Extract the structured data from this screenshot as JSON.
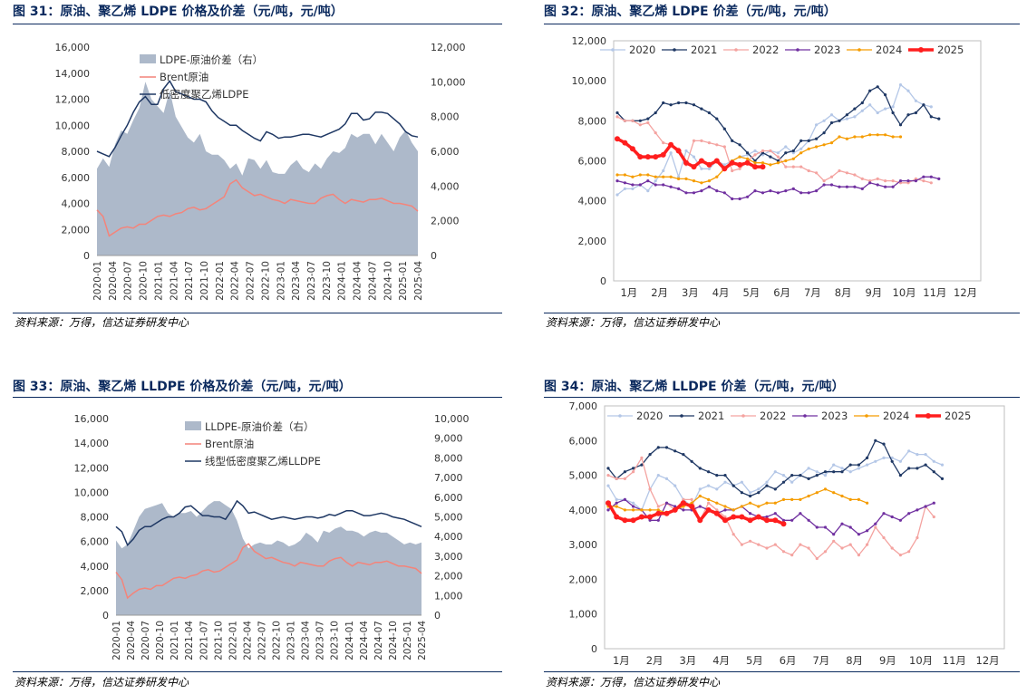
{
  "panels": [
    {
      "title": "图 31：原油、聚乙烯 LDPE 价格及价差（元/吨，元/吨）",
      "source": "资料来源：万得，信达证券研发中心"
    },
    {
      "title": "图 32：原油、聚乙烯 LDPE 价差（元/吨，元/吨）",
      "source": "资料来源：万得，信达证券研发中心"
    },
    {
      "title": "图 33：原油、聚乙烯 LLDPE 价格及价差（元/吨，元/吨）",
      "source": "资料来源：万得，信达证券研发中心"
    },
    {
      "title": "图 34：原油、聚乙烯 LLDPE 价差（元/吨，元/吨）",
      "source": "资料来源：万得，信达证券研发中心"
    }
  ],
  "colors": {
    "spread_area": "#adb9ca",
    "brent": "#f4847a",
    "pe_line": "#1f3864",
    "y2020": "#b4c7e7",
    "y2021": "#1f3864",
    "y2022": "#f4a3a0",
    "y2023": "#7030a0",
    "y2024": "#f59c00",
    "y2025": "#ff1e1e"
  },
  "chart_data": [
    {
      "id": "fig31",
      "type": "line",
      "xlabels": [
        "2020-01",
        "2020-04",
        "2020-07",
        "2020-10",
        "2021-01",
        "2021-04",
        "2021-07",
        "2021-10",
        "2022-01",
        "2022-04",
        "2022-07",
        "2022-10",
        "2023-01",
        "2023-04",
        "2023-07",
        "2023-10",
        "2024-01",
        "2024-04",
        "2024-07",
        "2024-10",
        "2025-01",
        "2025-04"
      ],
      "ylim_left": [
        0,
        16000
      ],
      "yticks_left": [
        "0",
        "2,000",
        "4,000",
        "6,000",
        "8,000",
        "10,000",
        "12,000",
        "14,000",
        "16,000"
      ],
      "ylim_right": [
        0,
        12000
      ],
      "yticks_right": [
        "0",
        "2,000",
        "4,000",
        "6,000",
        "8,000",
        "10,000",
        "12,000"
      ],
      "series": [
        {
          "name": "LDPE-原油价差（右）",
          "axis": "right",
          "kind": "area",
          "color_key": "spread_area",
          "values": [
            5000,
            5600,
            5100,
            6400,
            7200,
            7000,
            7800,
            8500,
            10000,
            9000,
            8600,
            8200,
            9500,
            8000,
            7400,
            6800,
            6500,
            7000,
            6000,
            5800,
            5800,
            5500,
            5000,
            5300,
            4600,
            5600,
            5500,
            5000,
            5500,
            4800,
            4700,
            4700,
            5200,
            5500,
            5000,
            4800,
            5300,
            5000,
            5600,
            6000,
            5900,
            6200,
            7000,
            6800,
            7000,
            7000,
            6400,
            7000,
            6500,
            6000,
            6800,
            7200,
            6500,
            6000
          ]
        },
        {
          "name": "Brent原油",
          "axis": "left",
          "kind": "line",
          "color_key": "brent",
          "values": [
            3500,
            3000,
            1500,
            1800,
            2100,
            2200,
            2100,
            2400,
            2400,
            2700,
            3000,
            3100,
            3000,
            3200,
            3300,
            3600,
            3700,
            3500,
            3600,
            3900,
            4200,
            4500,
            5500,
            5800,
            5200,
            4900,
            4600,
            4700,
            4500,
            4300,
            4200,
            4000,
            4300,
            4200,
            4100,
            4000,
            4000,
            4400,
            4600,
            4700,
            4300,
            4000,
            4300,
            4200,
            4100,
            4300,
            4300,
            4400,
            4200,
            4000,
            4000,
            3900,
            3800,
            3400
          ]
        },
        {
          "name": "低密度聚乙烯LDPE",
          "axis": "left",
          "kind": "line",
          "color_key": "pe_line",
          "values": [
            8000,
            7800,
            7600,
            8300,
            9200,
            10000,
            11000,
            11800,
            12200,
            11600,
            11600,
            12800,
            13400,
            12600,
            12400,
            12200,
            12000,
            12000,
            11800,
            11100,
            10600,
            10300,
            10000,
            10000,
            9600,
            9300,
            9000,
            8800,
            9500,
            9300,
            9000,
            9100,
            9100,
            9200,
            9300,
            9300,
            9200,
            9100,
            9300,
            9500,
            9700,
            10100,
            10900,
            10900,
            10400,
            10500,
            11000,
            11000,
            10900,
            10500,
            10100,
            9500,
            9200,
            9100
          ]
        }
      ]
    },
    {
      "id": "fig32",
      "type": "line",
      "xlabels": [
        "1月",
        "2月",
        "3月",
        "4月",
        "5月",
        "6月",
        "7月",
        "8月",
        "9月",
        "10月",
        "11月",
        "12月"
      ],
      "ylim": [
        0,
        12000
      ],
      "yticks": [
        "0",
        "2,000",
        "4,000",
        "6,000",
        "8,000",
        "10,000",
        "12,000"
      ],
      "series": [
        {
          "name": "2020",
          "color_key": "y2020",
          "values": [
            4300,
            4600,
            4600,
            4800,
            4500,
            5000,
            5500,
            6400,
            5200,
            6500,
            6200,
            5600,
            5600,
            6000,
            5800,
            6000,
            6200,
            6300,
            6500,
            6300,
            6500,
            6400,
            6700,
            6400,
            6600,
            7000,
            7800,
            8000,
            8300,
            8000,
            8100,
            8200,
            8500,
            8800,
            8400,
            8600,
            8700,
            9800,
            9500,
            9000,
            8800,
            8700
          ]
        },
        {
          "name": "2021",
          "color_key": "y2021",
          "values": [
            8400,
            8000,
            8000,
            8000,
            8100,
            8400,
            8900,
            8800,
            8900,
            8900,
            8800,
            8600,
            8400,
            8100,
            7600,
            7000,
            6800,
            6400,
            6000,
            6400,
            6200,
            6000,
            6400,
            6500,
            7000,
            7000,
            7100,
            7400,
            7900,
            8000,
            8300,
            8600,
            8900,
            9500,
            9700,
            9300,
            8400,
            7800,
            8300,
            8400,
            8800,
            8200,
            8100
          ]
        },
        {
          "name": "2022",
          "color_key": "y2022",
          "values": [
            8200,
            8000,
            8000,
            7800,
            7900,
            7400,
            6900,
            6800,
            6600,
            5800,
            7000,
            7000,
            6900,
            6800,
            6700,
            5500,
            5600,
            6000,
            6300,
            6500,
            6500,
            6200,
            5700,
            5700,
            5700,
            5500,
            5400,
            5000,
            5200,
            5500,
            5400,
            5300,
            5100,
            5000,
            5100,
            5000,
            5000,
            4900,
            4900,
            5100,
            5000,
            4900
          ]
        },
        {
          "name": "2023",
          "color_key": "y2023",
          "values": [
            5000,
            4900,
            4800,
            4800,
            5000,
            4800,
            4800,
            4700,
            4600,
            4400,
            4400,
            4500,
            4700,
            4500,
            4400,
            4100,
            4100,
            4200,
            4500,
            4400,
            4500,
            4400,
            4500,
            4600,
            4400,
            4400,
            4500,
            4800,
            4800,
            4700,
            4700,
            4700,
            4600,
            4900,
            4800,
            4700,
            4700,
            5000,
            5000,
            5000,
            5200,
            5200,
            5100
          ]
        },
        {
          "name": "2024",
          "color_key": "y2024",
          "values": [
            5300,
            5300,
            5200,
            5300,
            5300,
            5200,
            5200,
            5200,
            5100,
            5100,
            5000,
            4900,
            5000,
            5200,
            5600,
            6000,
            6200,
            6100,
            5900,
            5900,
            5800,
            5900,
            6000,
            6100,
            6400,
            6600,
            6700,
            6800,
            6900,
            7200,
            7100,
            7200,
            7200,
            7300,
            7300,
            7300,
            7200,
            7200
          ]
        },
        {
          "name": "2025",
          "color_key": "y2025",
          "values": [
            7100,
            6900,
            6600,
            6200,
            6200,
            6200,
            6300,
            6800,
            6500,
            5900,
            5700,
            6000,
            5800,
            6000,
            5600,
            5900,
            5800,
            5900,
            5700,
            5700
          ]
        }
      ]
    },
    {
      "id": "fig33",
      "type": "line",
      "xlabels": [
        "2020-01",
        "2020-04",
        "2020-07",
        "2020-10",
        "2021-01",
        "2021-04",
        "2021-07",
        "2021-10",
        "2022-01",
        "2022-04",
        "2022-07",
        "2022-10",
        "2023-01",
        "2023-04",
        "2023-07",
        "2023-10",
        "2024-01",
        "2024-04",
        "2024-07",
        "2024-10",
        "2025-01",
        "2025-04"
      ],
      "ylim_left": [
        0,
        16000
      ],
      "yticks_left": [
        "0",
        "2,000",
        "4,000",
        "6,000",
        "8,000",
        "10,000",
        "12,000",
        "14,000",
        "16,000"
      ],
      "ylim_right": [
        0,
        10000
      ],
      "yticks_right": [
        "0",
        "1,000",
        "2,000",
        "3,000",
        "4,000",
        "5,000",
        "6,000",
        "7,000",
        "8,000",
        "9,000",
        "10,000"
      ],
      "series": [
        {
          "name": "LLDPE-原油价差（右）",
          "axis": "right",
          "kind": "area",
          "color_key": "spread_area",
          "values": [
            3800,
            3400,
            3600,
            4300,
            5000,
            5400,
            5500,
            5600,
            5700,
            5200,
            5000,
            5200,
            5200,
            5300,
            5000,
            5300,
            5600,
            5800,
            5800,
            5600,
            5400,
            4800,
            3900,
            3400,
            3600,
            3700,
            3600,
            3600,
            3800,
            3700,
            3500,
            3600,
            3800,
            4200,
            4000,
            3700,
            4300,
            4200,
            4400,
            4500,
            4300,
            4300,
            4200,
            4000,
            4200,
            4300,
            4200,
            4200,
            4000,
            3800,
            3600,
            3700,
            3600,
            3700
          ]
        },
        {
          "name": "Brent原油",
          "axis": "left",
          "kind": "line",
          "color_key": "brent",
          "values": [
            3500,
            2900,
            1400,
            1800,
            2100,
            2200,
            2100,
            2400,
            2400,
            2700,
            3000,
            3100,
            3000,
            3200,
            3300,
            3600,
            3700,
            3500,
            3600,
            3900,
            4200,
            4500,
            5500,
            5800,
            5200,
            4900,
            4600,
            4700,
            4500,
            4300,
            4200,
            4000,
            4300,
            4200,
            4100,
            4000,
            4000,
            4400,
            4600,
            4700,
            4300,
            4000,
            4300,
            4200,
            4100,
            4300,
            4300,
            4400,
            4200,
            4000,
            4000,
            3900,
            3800,
            3400
          ]
        },
        {
          "name": "线型低密度聚乙烯LLDPE",
          "axis": "left",
          "kind": "line",
          "color_key": "pe_line",
          "values": [
            7200,
            6800,
            5700,
            6200,
            6900,
            7200,
            7200,
            7500,
            7800,
            8000,
            8000,
            8300,
            8800,
            8900,
            8500,
            8100,
            8100,
            8000,
            8000,
            7800,
            8500,
            9300,
            8900,
            8300,
            8400,
            8200,
            8000,
            7800,
            7900,
            8000,
            7900,
            7800,
            7900,
            8000,
            8000,
            7900,
            8000,
            8200,
            8100,
            8300,
            8500,
            8500,
            8300,
            8100,
            8100,
            8200,
            8300,
            8200,
            8000,
            7900,
            7800,
            7600,
            7400,
            7200
          ]
        }
      ]
    },
    {
      "id": "fig34",
      "type": "line",
      "xlabels": [
        "1月",
        "2月",
        "3月",
        "4月",
        "5月",
        "6月",
        "7月",
        "8月",
        "9月",
        "10月",
        "11月",
        "12月"
      ],
      "ylim": [
        0,
        7000
      ],
      "yticks": [
        "0",
        "1,000",
        "2,000",
        "3,000",
        "4,000",
        "5,000",
        "6,000",
        "7,000"
      ],
      "series": [
        {
          "name": "2020",
          "color_key": "y2020",
          "values": [
            4700,
            4300,
            4300,
            4200,
            4000,
            4600,
            5000,
            4900,
            4700,
            4300,
            4100,
            4600,
            4700,
            4600,
            4800,
            4700,
            4800,
            4500,
            4600,
            4800,
            5100,
            5000,
            4800,
            5000,
            5200,
            5100,
            5000,
            5300,
            5200,
            5100,
            5200,
            5300,
            5400,
            5500,
            5500,
            5400,
            5700,
            5600,
            5600,
            5400,
            5300
          ]
        },
        {
          "name": "2021",
          "color_key": "y2021",
          "values": [
            5200,
            4900,
            5100,
            5200,
            5300,
            5600,
            5800,
            5800,
            5700,
            5600,
            5400,
            5200,
            5100,
            5000,
            5000,
            4700,
            4500,
            4400,
            4500,
            4700,
            4600,
            4800,
            5000,
            5000,
            4900,
            5000,
            5100,
            5100,
            5100,
            5300,
            5300,
            5500,
            6000,
            5900,
            5400,
            5000,
            5200,
            5200,
            5300,
            5100,
            4900
          ]
        },
        {
          "name": "2022",
          "color_key": "y2022",
          "values": [
            5000,
            4900,
            4900,
            5100,
            5500,
            4600,
            4100,
            4200,
            4000,
            4300,
            4300,
            3700,
            4200,
            4000,
            3800,
            3300,
            3000,
            3100,
            3000,
            2900,
            3000,
            2800,
            2700,
            3000,
            2900,
            2600,
            2800,
            3100,
            2900,
            3000,
            2700,
            3000,
            3500,
            3200,
            2900,
            2700,
            2800,
            3200,
            4100,
            3800
          ]
        },
        {
          "name": "2023",
          "color_key": "y2023",
          "values": [
            4000,
            4200,
            4300,
            4100,
            4000,
            3700,
            3700,
            4200,
            4100,
            4000,
            4000,
            4100,
            4000,
            3900,
            4000,
            4000,
            4100,
            3900,
            3800,
            3800,
            3900,
            3700,
            3700,
            3900,
            3700,
            3500,
            3500,
            3300,
            3600,
            3500,
            3300,
            3400,
            3600,
            3900,
            3800,
            3700,
            3900,
            4000,
            4100,
            4200
          ]
        },
        {
          "name": "2024",
          "color_key": "y2024",
          "values": [
            4100,
            4100,
            4000,
            4000,
            4000,
            4000,
            4000,
            3900,
            4000,
            4100,
            4200,
            4400,
            4300,
            4200,
            4100,
            4000,
            4100,
            4200,
            4100,
            4200,
            4200,
            4300,
            4300,
            4300,
            4400,
            4500,
            4600,
            4500,
            4400,
            4300,
            4300,
            4200
          ]
        },
        {
          "name": "2025",
          "color_key": "y2025",
          "values": [
            4200,
            3800,
            3700,
            3700,
            3800,
            3800,
            3900,
            3900,
            4000,
            4200,
            4100,
            3700,
            4000,
            3900,
            3700,
            3800,
            3800,
            3700,
            3800,
            3700,
            3700,
            3600
          ]
        }
      ]
    }
  ]
}
